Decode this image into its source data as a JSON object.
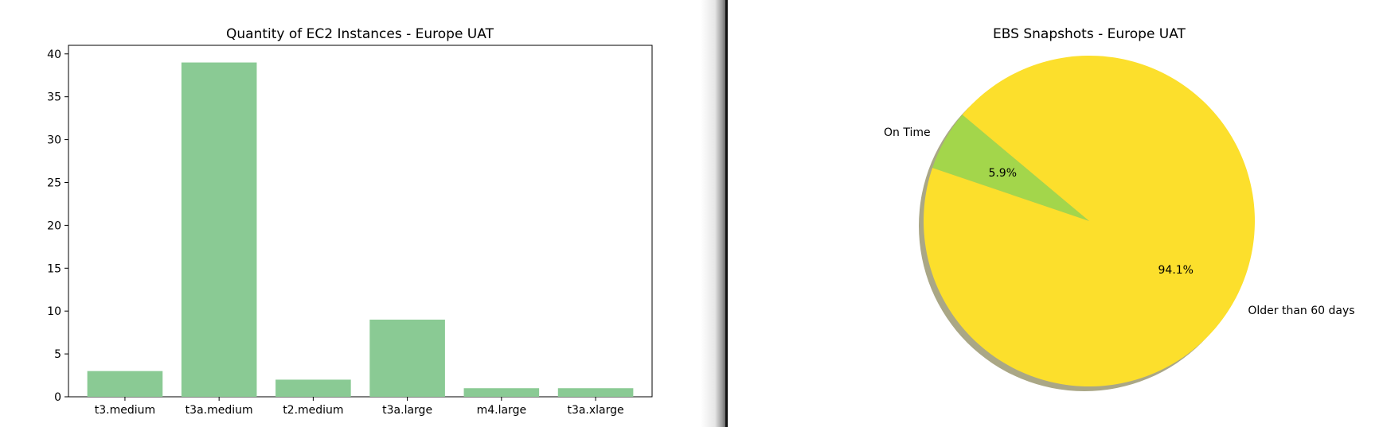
{
  "chart_data": [
    {
      "type": "bar",
      "title": "Quantity of EC2 Instances - Europe UAT",
      "categories": [
        "t3.medium",
        "t3a.medium",
        "t2.medium",
        "t3a.large",
        "m4.large",
        "t3a.xlarge"
      ],
      "values": [
        3,
        39,
        2,
        9,
        1,
        1
      ],
      "ylim": [
        0,
        41
      ],
      "yticks": [
        "0",
        "5",
        "10",
        "15",
        "20",
        "25",
        "30",
        "35",
        "40"
      ],
      "xlabel": "",
      "ylabel": "",
      "bar_color": "#8aca94",
      "grid": false
    },
    {
      "type": "pie",
      "title": "EBS Snapshots - Europe UAT",
      "labels": [
        "On Time",
        "Older than 60 days"
      ],
      "values": [
        5.9,
        94.1
      ],
      "pct_labels": [
        "5.9%",
        "94.1%"
      ],
      "colors": [
        "#a3d64b",
        "#fcdf2c"
      ],
      "shadow_color": "#aaa786",
      "shadow": true
    }
  ]
}
